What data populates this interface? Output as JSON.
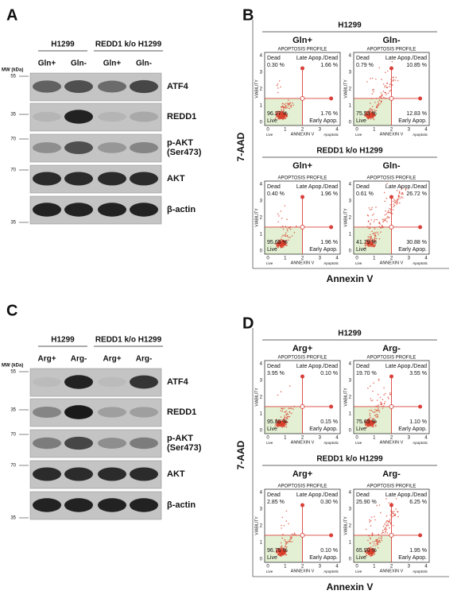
{
  "panel_a": {
    "label": "A",
    "groups": [
      "H1299",
      "REDD1 k/o H1299"
    ],
    "lanes": [
      "Gln+",
      "Gln-",
      "Gln+",
      "Gln-"
    ],
    "mw_header": "MW (kDa)",
    "blots": [
      {
        "protein": [
          "ATF4"
        ],
        "mw": 55
      },
      {
        "protein": [
          "REDD1"
        ],
        "mw": 35
      },
      {
        "protein": [
          "p-AKT",
          "(Ser473)"
        ],
        "mw": 70
      },
      {
        "protein": [
          "AKT"
        ],
        "mw": 70
      },
      {
        "protein": [
          "β-actin"
        ],
        "mw": 35
      }
    ]
  },
  "panel_b": {
    "label": "B",
    "y_label": "7-AAD",
    "x_label": "Annexin V",
    "rows": [
      {
        "title": "H1299",
        "columns": [
          "Gln+",
          "Gln-"
        ],
        "plots": [
          {
            "dead": "0.30 %",
            "late": "1.66 %",
            "live": "96.27 %",
            "early": "1.76 %"
          },
          {
            "dead": "0.79 %",
            "late": "10.85 %",
            "live": "75.53 %",
            "early": "12.83 %"
          }
        ]
      },
      {
        "title": "REDD1 k/o H1299",
        "columns": [
          "Gln+",
          "Gln-"
        ],
        "plots": [
          {
            "dead": "0.40 %",
            "late": "1.96 %",
            "live": "95.68 %",
            "early": "1.96 %"
          },
          {
            "dead": "0.61 %",
            "late": "26.72 %",
            "live": "41.79 %",
            "early": "30.88 %"
          }
        ]
      }
    ]
  },
  "panel_c": {
    "label": "C",
    "groups": [
      "H1299",
      "REDD1 k/o H1299"
    ],
    "lanes": [
      "Arg+",
      "Arg-",
      "Arg+",
      "Arg-"
    ],
    "mw_header": "MW (kDa)",
    "blots": [
      {
        "protein": [
          "ATF4"
        ],
        "mw": 55
      },
      {
        "protein": [
          "REDD1"
        ],
        "mw": 35
      },
      {
        "protein": [
          "p-AKT",
          "(Ser473)"
        ],
        "mw": 70
      },
      {
        "protein": [
          "AKT"
        ],
        "mw": 70
      },
      {
        "protein": [
          "β-actin"
        ],
        "mw": 35
      }
    ]
  },
  "panel_d": {
    "label": "D",
    "y_label": "7-AAD",
    "x_label": "Annexin V",
    "rows": [
      {
        "title": "H1299",
        "columns": [
          "Arg+",
          "Arg-"
        ],
        "plots": [
          {
            "dead": "3.95 %",
            "late": "0.10 %",
            "live": "95.80 %",
            "early": "0.15 %"
          },
          {
            "dead": "19.70 %",
            "late": "3.55 %",
            "live": "75.65 %",
            "early": "1.10 %"
          }
        ]
      },
      {
        "title": "REDD1 k/o H1299",
        "columns": [
          "Arg+",
          "Arg-"
        ],
        "plots": [
          {
            "dead": "2.85 %",
            "late": "0.30 %",
            "live": "96.75 %",
            "early": "0.10 %"
          },
          {
            "dead": "25.90 %",
            "late": "6.25 %",
            "live": "65.90 %",
            "early": "1.95 %"
          }
        ]
      }
    ]
  },
  "plot_text": {
    "header": "APOPTOSIS PROFILE",
    "dead": "Dead",
    "late": "Late Apop./Dead",
    "live": "Live",
    "early": "Early Apop.",
    "y_axis": "VIABILITY",
    "x_axis": "ANNEXIN V",
    "ticks": [
      0,
      1,
      2,
      3,
      4
    ],
    "x_left": "Live",
    "x_right": "Apoptotic"
  }
}
